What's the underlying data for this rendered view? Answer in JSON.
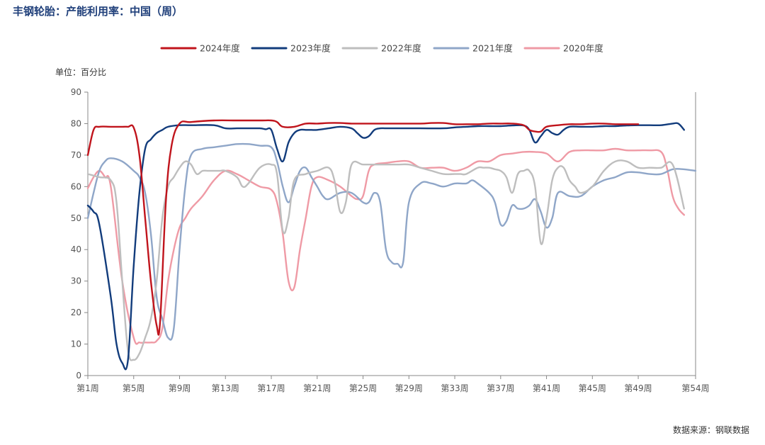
{
  "header": {
    "title": "丰钢轮胎：产能利用率：中国（周）"
  },
  "footer": {
    "source": "数据来源：钢联数据"
  },
  "chart_data": {
    "type": "line",
    "title": "丰钢轮胎：产能利用率：中国（周）",
    "ylabel": "单位：百分比",
    "xlabel": "",
    "ylim": [
      0,
      90
    ],
    "yticks": [
      0,
      10,
      20,
      30,
      40,
      50,
      60,
      70,
      80,
      90
    ],
    "xlim": [
      1,
      54
    ],
    "xticks": [
      {
        "week": 1,
        "label": "第1周"
      },
      {
        "week": 5,
        "label": "第5周"
      },
      {
        "week": 9,
        "label": "第9周"
      },
      {
        "week": 13,
        "label": "第13周"
      },
      {
        "week": 17,
        "label": "第17周"
      },
      {
        "week": 21,
        "label": "第21周"
      },
      {
        "week": 25,
        "label": "第25周"
      },
      {
        "week": 29,
        "label": "第29周"
      },
      {
        "week": 33,
        "label": "第33周"
      },
      {
        "week": 37,
        "label": "第37周"
      },
      {
        "week": 41,
        "label": "第41周"
      },
      {
        "week": 45,
        "label": "第45周"
      },
      {
        "week": 49,
        "label": "第49周"
      },
      {
        "week": 54,
        "label": "第54周"
      }
    ],
    "grid": false,
    "legend_position": "top",
    "series": [
      {
        "name": "2024年度",
        "color": "#c0141c",
        "x": [
          1,
          1.5,
          2,
          3,
          4,
          4.5,
          5,
          5.5,
          6,
          6.5,
          7,
          7.3,
          7.8,
          8.3,
          9,
          10,
          12,
          14,
          16,
          17,
          17.5,
          18,
          19,
          20,
          21,
          22,
          23,
          24,
          25,
          26,
          27,
          28,
          30,
          31,
          32,
          33,
          34,
          35,
          36,
          37,
          38,
          39,
          39.5,
          40,
          40.5,
          41,
          42,
          43,
          44,
          45,
          46,
          47,
          48,
          49
        ],
        "y": [
          70,
          78,
          79,
          79,
          79,
          79,
          78.7,
          70,
          50,
          30,
          16,
          17,
          55,
          73,
          80,
          80.5,
          81,
          81,
          81,
          81,
          80.5,
          79,
          79,
          80,
          80,
          80.2,
          80.2,
          80,
          80,
          80,
          80,
          80,
          80,
          80.2,
          80.2,
          79.8,
          79.8,
          79.8,
          80,
          80,
          80,
          79.5,
          78,
          77.5,
          77.5,
          79,
          79.5,
          79.8,
          79.8,
          80,
          80,
          79.8,
          79.8,
          79.8
        ]
      },
      {
        "name": "2023年度",
        "color": "#123c7c",
        "x": [
          1,
          1.5,
          2,
          3,
          3.5,
          4,
          4.5,
          5,
          5.5,
          6,
          6.5,
          7,
          7.5,
          8,
          9,
          10,
          12,
          13,
          14,
          15,
          16,
          16.5,
          17,
          17.5,
          18,
          18.5,
          19,
          19.5,
          20,
          20.5,
          21,
          22,
          23,
          24,
          24.5,
          25,
          25.5,
          26,
          26.5,
          27,
          28,
          30,
          32,
          33,
          34,
          35,
          36,
          37,
          38,
          39,
          39.5,
          40,
          40.5,
          41,
          41.5,
          42,
          42.5,
          43,
          44,
          45,
          46,
          47,
          48,
          49,
          50,
          51,
          52,
          52.5,
          53
        ],
        "y": [
          54,
          52,
          48,
          25,
          10,
          4,
          5,
          35,
          58,
          72,
          75,
          77,
          78,
          79,
          79.5,
          79.5,
          79.5,
          78.5,
          78.5,
          78.5,
          78.5,
          78.2,
          78,
          72,
          68,
          74,
          77,
          78,
          78,
          78,
          78,
          78.5,
          79,
          78.5,
          77,
          75.5,
          76,
          78,
          78.5,
          78.5,
          78.5,
          78.5,
          78.5,
          78.8,
          79,
          79.2,
          79.2,
          79.2,
          79.4,
          79.4,
          78,
          74,
          76,
          78,
          77,
          76.5,
          78,
          79,
          79,
          79,
          79.2,
          79.2,
          79.4,
          79.5,
          79.5,
          79.5,
          80,
          80,
          78
        ]
      },
      {
        "name": "2022年度",
        "color": "#bebebe",
        "x": [
          1,
          2,
          3,
          3.5,
          4,
          4.5,
          5,
          5.5,
          6,
          6.5,
          7,
          7.5,
          8,
          8.5,
          9,
          9.5,
          10,
          10.5,
          11,
          11.5,
          12,
          12.5,
          13,
          14,
          14.5,
          15,
          16,
          17,
          17.5,
          18,
          18.5,
          19,
          20,
          21,
          22,
          22.5,
          23,
          23.5,
          24,
          25,
          26,
          27,
          28,
          29,
          30,
          31,
          32,
          33,
          33.5,
          34,
          35,
          35.5,
          36,
          36.5,
          37,
          37.5,
          38,
          38.5,
          39,
          39.5,
          40,
          40.5,
          41,
          41.5,
          42,
          42.5,
          43,
          43.5,
          44,
          45,
          46,
          47,
          48,
          49,
          50,
          51,
          52,
          53
        ],
        "y": [
          64,
          63,
          62,
          55,
          30,
          8,
          5,
          7,
          12,
          18,
          30,
          50,
          60,
          63,
          66,
          68,
          67,
          64,
          65,
          65,
          65,
          65,
          65,
          63,
          60,
          61,
          66,
          67,
          64,
          46,
          50,
          62,
          64,
          65,
          66,
          62,
          52,
          55,
          67,
          67,
          67,
          67,
          67,
          67,
          66,
          65,
          64,
          64,
          64,
          64,
          66,
          66,
          66,
          65.5,
          65,
          63,
          58,
          64,
          65,
          65,
          60,
          42,
          50,
          62,
          66,
          66,
          62,
          60,
          58,
          60,
          65,
          68,
          68,
          66,
          66,
          66,
          67,
          53
        ]
      },
      {
        "name": "2021年度",
        "color": "#8fa6c8",
        "x": [
          1,
          1.5,
          2,
          2.5,
          3,
          4,
          5,
          5.5,
          6,
          6.5,
          7,
          7.5,
          8,
          8.5,
          9,
          9.5,
          10,
          11,
          12,
          13,
          14,
          15,
          16,
          17,
          17.5,
          18,
          18.5,
          19,
          19.5,
          20,
          20.5,
          21,
          21.5,
          22,
          23,
          24,
          25,
          25.5,
          26,
          26.5,
          27,
          27.5,
          28,
          28.5,
          29,
          30,
          31,
          32,
          33,
          34,
          34.5,
          35,
          36,
          36.5,
          37,
          37.5,
          38,
          38.5,
          39,
          39.5,
          40,
          40.5,
          41,
          41.5,
          42,
          43,
          44,
          45,
          46,
          47,
          48,
          49,
          50,
          51,
          52,
          53,
          54
        ],
        "y": [
          50,
          58,
          65,
          68,
          69,
          68,
          65,
          63,
          58,
          45,
          25,
          18,
          12,
          15,
          40,
          60,
          70,
          72,
          72.5,
          73,
          73.5,
          73.5,
          73,
          72.5,
          68,
          60,
          55,
          60,
          65,
          66,
          63,
          60,
          57,
          56,
          58,
          58,
          55,
          55,
          58,
          55,
          40,
          36,
          35.5,
          36,
          55,
          61,
          61,
          60,
          61,
          61,
          62,
          61,
          58,
          55,
          48,
          49,
          54,
          53,
          53,
          54,
          56,
          52,
          47,
          50,
          58,
          57,
          57,
          60,
          62,
          63,
          64.5,
          64.5,
          64,
          64,
          65.5,
          65.5,
          65
        ]
      },
      {
        "name": "2020年度",
        "color": "#ef9aa5",
        "x": [
          1,
          1.5,
          2,
          2.5,
          3,
          4,
          5,
          5.5,
          6,
          6.5,
          7,
          7.5,
          8,
          8.5,
          9,
          9.5,
          10,
          11,
          12,
          13,
          14,
          15,
          16,
          17,
          17.5,
          18,
          18.5,
          19,
          19.5,
          20,
          20.5,
          21,
          22,
          23,
          24,
          24.5,
          25,
          25.5,
          26,
          27,
          28,
          29,
          30,
          31,
          32,
          33,
          34,
          35,
          36,
          37,
          38,
          39,
          40,
          41,
          42,
          43,
          44,
          45,
          46,
          47,
          48,
          49,
          50,
          51,
          51.5,
          52,
          52.5,
          53
        ],
        "y": [
          59.5,
          63,
          65,
          63,
          60,
          30,
          12,
          10.5,
          10.5,
          10.5,
          11,
          15,
          30,
          40,
          47,
          50,
          53,
          57,
          62,
          65,
          64,
          62,
          60,
          59,
          55,
          45,
          30,
          28,
          40,
          50,
          60,
          63,
          62,
          60,
          57,
          56,
          57,
          65,
          67,
          67.5,
          68,
          68,
          66,
          66,
          66,
          65,
          66,
          68,
          68,
          70,
          70.5,
          71,
          71,
          70.5,
          68,
          71,
          71.5,
          71.5,
          71.5,
          72,
          71.5,
          71.5,
          71.5,
          71,
          66,
          57,
          53,
          51
        ]
      }
    ]
  }
}
